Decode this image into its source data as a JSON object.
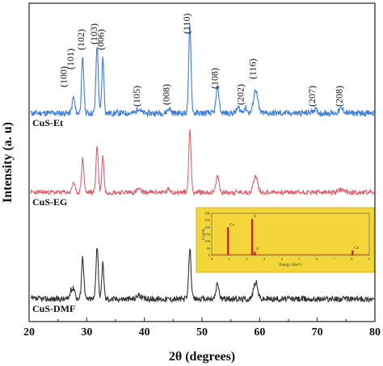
{
  "chart_data": {
    "type": "line",
    "title": "",
    "xlabel": "2θ (degrees)",
    "ylabel": "Intensity (a. u)",
    "xlim": [
      20,
      80
    ],
    "x_ticks": [
      "20",
      "30",
      "40",
      "50",
      "60",
      "70",
      "80"
    ],
    "grid": false,
    "legend": "none",
    "series": [
      {
        "name": "CuS-Et",
        "color": "#3b7be0",
        "peaks": [
          {
            "x": 27.7,
            "h": 0.18,
            "w": 0.22
          },
          {
            "x": 29.3,
            "h": 0.62,
            "w": 0.2
          },
          {
            "x": 31.8,
            "h": 0.78,
            "w": 0.2
          },
          {
            "x": 32.8,
            "h": 0.64,
            "w": 0.18
          },
          {
            "x": 39.0,
            "h": 0.06,
            "w": 0.3
          },
          {
            "x": 44.3,
            "h": 0.05,
            "w": 0.3
          },
          {
            "x": 47.9,
            "h": 1.0,
            "w": 0.2
          },
          {
            "x": 52.7,
            "h": 0.3,
            "w": 0.25
          },
          {
            "x": 56.3,
            "h": 0.06,
            "w": 0.3
          },
          {
            "x": 57.5,
            "h": 0.06,
            "w": 0.3
          },
          {
            "x": 59.3,
            "h": 0.27,
            "w": 0.35
          },
          {
            "x": 69.5,
            "h": 0.04,
            "w": 0.4
          },
          {
            "x": 74.2,
            "h": 0.05,
            "w": 0.4
          }
        ]
      },
      {
        "name": "CuS-EG",
        "color": "#e0606e",
        "peaks": [
          {
            "x": 27.7,
            "h": 0.15,
            "w": 0.22
          },
          {
            "x": 29.3,
            "h": 0.5,
            "w": 0.2
          },
          {
            "x": 31.8,
            "h": 0.68,
            "w": 0.2
          },
          {
            "x": 32.8,
            "h": 0.55,
            "w": 0.18
          },
          {
            "x": 39.0,
            "h": 0.05,
            "w": 0.3
          },
          {
            "x": 44.3,
            "h": 0.04,
            "w": 0.3
          },
          {
            "x": 47.9,
            "h": 0.9,
            "w": 0.2
          },
          {
            "x": 52.7,
            "h": 0.24,
            "w": 0.25
          },
          {
            "x": 59.3,
            "h": 0.24,
            "w": 0.35
          },
          {
            "x": 74.2,
            "h": 0.04,
            "w": 0.4
          }
        ]
      },
      {
        "name": "CuS-DMF",
        "color": "#333333",
        "peaks": [
          {
            "x": 27.3,
            "h": 0.1,
            "w": 0.22
          },
          {
            "x": 27.8,
            "h": 0.12,
            "w": 0.22
          },
          {
            "x": 29.3,
            "h": 0.5,
            "w": 0.2
          },
          {
            "x": 31.8,
            "h": 0.62,
            "w": 0.2
          },
          {
            "x": 32.8,
            "h": 0.42,
            "w": 0.18
          },
          {
            "x": 39.0,
            "h": 0.05,
            "w": 0.3
          },
          {
            "x": 47.9,
            "h": 0.6,
            "w": 0.2
          },
          {
            "x": 52.7,
            "h": 0.18,
            "w": 0.25
          },
          {
            "x": 59.3,
            "h": 0.2,
            "w": 0.35
          }
        ]
      }
    ],
    "annotations": [
      {
        "text": "(100)",
        "x": 26.5
      },
      {
        "text": "(101)",
        "x": 27.7
      },
      {
        "text": "(102)",
        "x": 29.5
      },
      {
        "text": "(103)",
        "x": 31.8
      },
      {
        "text": "(006)",
        "x": 33.0
      },
      {
        "text": "(105)",
        "x": 39.2
      },
      {
        "text": "(008)",
        "x": 44.3
      },
      {
        "text": "(110)",
        "x": 47.9
      },
      {
        "text": "(108)",
        "x": 52.7
      },
      {
        "text": "(202)",
        "x": 57.2
      },
      {
        "text": "(116)",
        "x": 59.3
      },
      {
        "text": "(207)",
        "x": 69.6
      },
      {
        "text": "(208)",
        "x": 74.3
      }
    ],
    "inset": {
      "type": "bar",
      "background": "#f2d63a",
      "xlabel": "Energy (KeV)",
      "ylabel": "Counts",
      "xlim": [
        0,
        9
      ],
      "ylim": [
        0,
        300
      ],
      "x_ticks": [
        "0",
        "1",
        "2",
        "3",
        "4",
        "5",
        "6",
        "7",
        "8",
        "9"
      ],
      "y_ticks": [
        "0",
        "50",
        "100",
        "150",
        "200",
        "250",
        "300"
      ],
      "peaks": [
        {
          "label": "Cu",
          "x": 0.93,
          "value": 200
        },
        {
          "label": "S",
          "x": 2.31,
          "value": 260
        },
        {
          "label": "S",
          "x": 2.46,
          "value": 25
        },
        {
          "label": "Cu",
          "x": 8.05,
          "value": 35
        }
      ],
      "peak_labels": [
        {
          "text": "Cu",
          "x": 0.93
        },
        {
          "text": "S",
          "x": 2.31
        },
        {
          "text": "S",
          "x": 2.46
        },
        {
          "text": "Cu",
          "x": 8.05
        }
      ]
    }
  }
}
